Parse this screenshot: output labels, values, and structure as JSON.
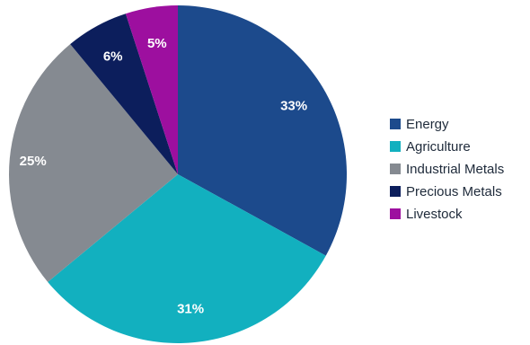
{
  "chart_data": {
    "type": "pie",
    "title": "",
    "legend_position": "right",
    "start_angle_deg": 0,
    "direction": "clockwise",
    "slices": [
      {
        "name": "Energy",
        "value": 33,
        "label": "33%",
        "color": "#1c4a8c"
      },
      {
        "name": "Agriculture",
        "value": 31,
        "label": "31%",
        "color": "#12b0bf"
      },
      {
        "name": "Industrial Metals",
        "value": 25,
        "label": "25%",
        "color": "#858a91"
      },
      {
        "name": "Precious Metals",
        "value": 6,
        "label": "6%",
        "color": "#0c1e5c"
      },
      {
        "name": "Livestock",
        "value": 5,
        "label": "5%",
        "color": "#9d0f9f"
      }
    ]
  }
}
